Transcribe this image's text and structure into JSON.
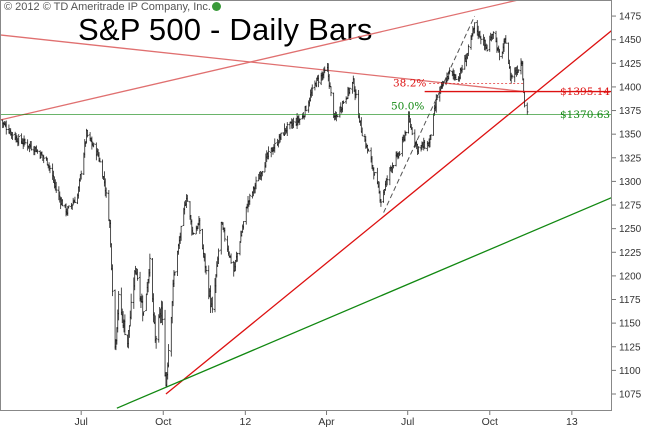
{
  "copyright": "© 2012 © TD Ameritrade IP Company, Inc.",
  "chart_data": {
    "type": "candlestick",
    "title": "S&P 500 - Daily Bars",
    "xlabel": "",
    "ylabel": "",
    "ylim": [
      1060,
      1490
    ],
    "y_ticks": [
      1075,
      1100,
      1125,
      1150,
      1175,
      1200,
      1225,
      1250,
      1275,
      1300,
      1325,
      1350,
      1375,
      1400,
      1425,
      1450,
      1475
    ],
    "x_ticks": [
      "Jul",
      "Oct",
      "12",
      "Apr",
      "Jul",
      "Oct",
      "13"
    ],
    "grid": "off",
    "price_path": [
      [
        "2011-04-01",
        1365
      ],
      [
        "2011-04-20",
        1345
      ],
      [
        "2011-05-10",
        1335
      ],
      [
        "2011-05-25",
        1320
      ],
      [
        "2011-06-05",
        1285
      ],
      [
        "2011-06-15",
        1268
      ],
      [
        "2011-06-27",
        1285
      ],
      [
        "2011-07-07",
        1350
      ],
      [
        "2011-07-20",
        1328
      ],
      [
        "2011-07-27",
        1300
      ],
      [
        "2011-08-02",
        1255
      ],
      [
        "2011-08-08",
        1125
      ],
      [
        "2011-08-12",
        1175
      ],
      [
        "2011-08-22",
        1130
      ],
      [
        "2011-08-31",
        1210
      ],
      [
        "2011-09-09",
        1160
      ],
      [
        "2011-09-16",
        1215
      ],
      [
        "2011-09-22",
        1130
      ],
      [
        "2011-09-29",
        1165
      ],
      [
        "2011-10-04",
        1085
      ],
      [
        "2011-10-13",
        1200
      ],
      [
        "2011-10-27",
        1285
      ],
      [
        "2011-11-03",
        1245
      ],
      [
        "2011-11-10",
        1255
      ],
      [
        "2011-11-25",
        1160
      ],
      [
        "2011-12-05",
        1255
      ],
      [
        "2011-12-19",
        1205
      ],
      [
        "2012-01-03",
        1275
      ],
      [
        "2012-01-25",
        1325
      ],
      [
        "2012-02-15",
        1355
      ],
      [
        "2012-03-05",
        1368
      ],
      [
        "2012-03-20",
        1405
      ],
      [
        "2012-04-02",
        1418
      ],
      [
        "2012-04-10",
        1365
      ],
      [
        "2012-04-20",
        1385
      ],
      [
        "2012-05-01",
        1405
      ],
      [
        "2012-05-10",
        1355
      ],
      [
        "2012-05-22",
        1318
      ],
      [
        "2012-06-01",
        1280
      ],
      [
        "2012-06-12",
        1315
      ],
      [
        "2012-06-22",
        1330
      ],
      [
        "2012-07-02",
        1365
      ],
      [
        "2012-07-12",
        1335
      ],
      [
        "2012-07-25",
        1340
      ],
      [
        "2012-08-03",
        1390
      ],
      [
        "2012-08-17",
        1415
      ],
      [
        "2012-08-27",
        1410
      ],
      [
        "2012-09-06",
        1435
      ],
      [
        "2012-09-14",
        1465
      ],
      [
        "2012-09-28",
        1440
      ],
      [
        "2012-10-05",
        1460
      ],
      [
        "2012-10-12",
        1430
      ],
      [
        "2012-10-19",
        1450
      ],
      [
        "2012-10-24",
        1410
      ],
      [
        "2012-11-02",
        1420
      ],
      [
        "2012-11-06",
        1428
      ],
      [
        "2012-11-09",
        1380
      ],
      [
        "2012-11-12",
        1375
      ]
    ],
    "lines": [
      {
        "name": "upper trend",
        "color": "#e07070",
        "from": [
          "2011-04-01",
          1365
        ],
        "to": [
          "2013-02-15",
          1515
        ]
      },
      {
        "name": "resistance trend",
        "color": "#e07070",
        "from": [
          "2011-04-01",
          1455
        ],
        "to": [
          "2012-11-09",
          1395
        ]
      },
      {
        "name": "support trend",
        "color": "#dd1111",
        "from": [
          "2011-10-04",
          1075
        ],
        "to": [
          "2013-02-15",
          1460
        ]
      },
      {
        "name": "long-term trend",
        "color": "#118811",
        "from": [
          "2011-08-10",
          1060
        ],
        "to": [
          "2013-02-15",
          1283
        ]
      },
      {
        "name": "rally channel",
        "color": "#555555",
        "dashed": true,
        "from": [
          "2012-06-04",
          1267
        ],
        "to": [
          "2012-09-14",
          1475
        ]
      }
    ],
    "annotations": [
      {
        "label": "38.2%",
        "value": 1395.14,
        "value_label": "$1395.14",
        "color": "#dd1111",
        "line_from": "2012-07-20"
      },
      {
        "label": "50.0%",
        "value": 1370.63,
        "value_label": "$1370.63",
        "color": "#118811",
        "line_from": "2011-04-01"
      }
    ]
  }
}
